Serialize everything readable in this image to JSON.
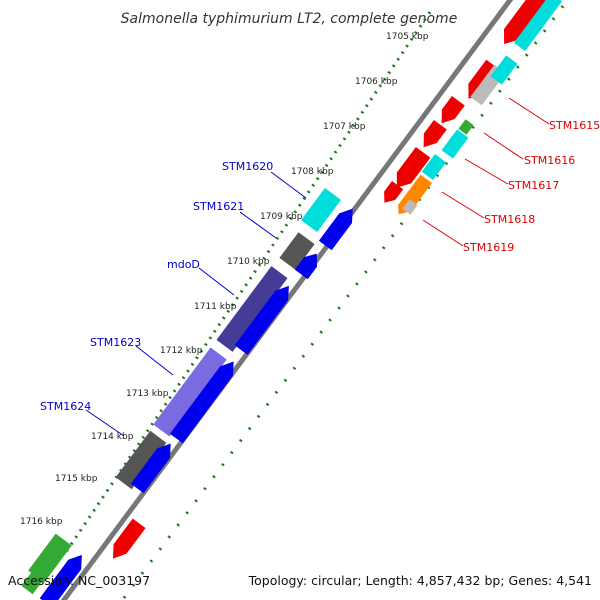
{
  "title": "Salmonella typhimurium LT2, complete genome",
  "footer": {
    "accession": "Accession: NC_003197",
    "topology": "Topology: circular; Length: 4,857,432 bp; Genes: 4,541"
  },
  "colors": {
    "backbone": "#888888",
    "tick": "#1a7a1a",
    "label_forward": "#0000cc",
    "label_reverse": "#dd0000",
    "blue": "#0000ee",
    "gray": "#555555",
    "cyan": "#00dddd",
    "slateblue": "#443c96",
    "lavender": "#7a6be0",
    "green": "#33aa33",
    "red": "#ee0000",
    "lightgray": "#bbbbbb",
    "orange": "#ff8800"
  },
  "scale_labels": [
    "1705 kbp",
    "1706 kbp",
    "1707 kbp",
    "1708 kbp",
    "1709 kbp",
    "1710 kbp",
    "1711 kbp",
    "1712 kbp",
    "1713 kbp",
    "1714 kbp",
    "1715 kbp",
    "1716 kbp"
  ],
  "gene_labels_forward": [
    "STM1620",
    "STM1621",
    "mdoD",
    "STM1623",
    "STM1624"
  ],
  "gene_labels_reverse": [
    "STM1615",
    "STM1616",
    "STM1617",
    "STM1618",
    "STM1619"
  ]
}
